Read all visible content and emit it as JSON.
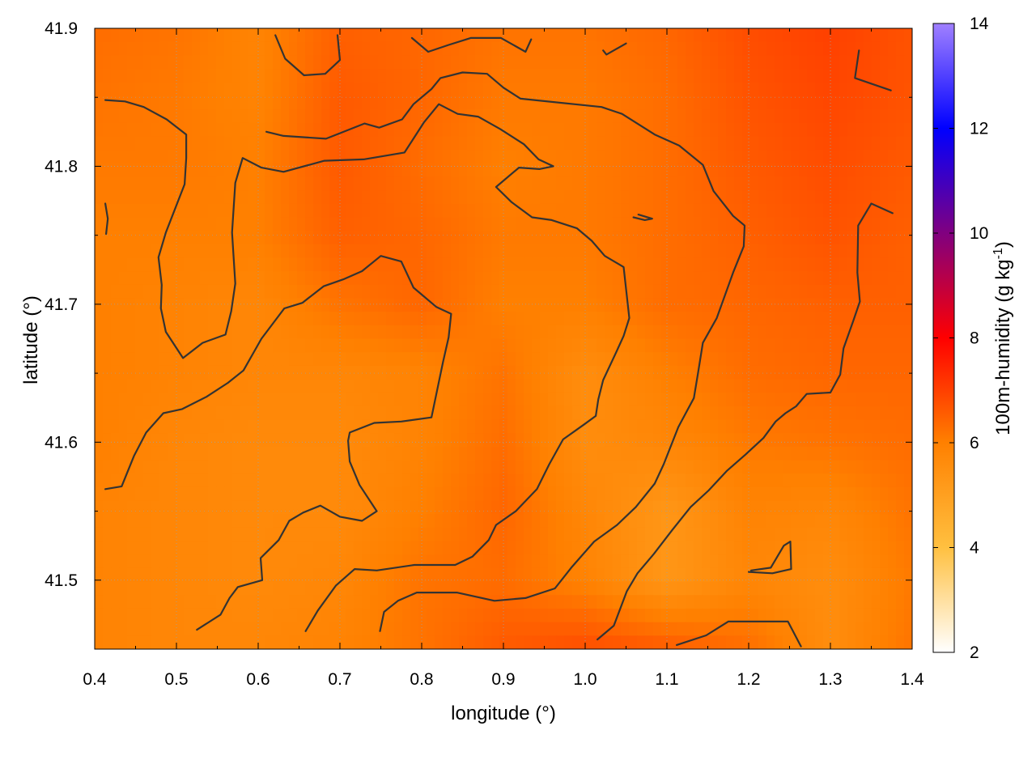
{
  "chart_data": {
    "type": "heatmap",
    "title": "",
    "xlabel": "longitude (°)",
    "ylabel": "latitude (°)",
    "colorbar_label_main": "100m-humidity (g kg",
    "colorbar_label_sup": "-1",
    "colorbar_label_end": ")",
    "xlim": [
      0.4,
      1.4
    ],
    "ylim": [
      41.45,
      41.9
    ],
    "x_ticks": [
      "0.4",
      "0.5",
      "0.6",
      "0.7",
      "0.8",
      "0.9",
      "1.0",
      "1.1",
      "1.2",
      "1.3",
      "1.4"
    ],
    "y_ticks": [
      "41.5",
      "41.6",
      "41.7",
      "41.8",
      "41.9"
    ],
    "colorbar_range": [
      2,
      14
    ],
    "colorbar_ticks": [
      "2",
      "4",
      "6",
      "8",
      "10",
      "12",
      "14"
    ],
    "colormap": [
      {
        "v": 2,
        "color": "#ffffff"
      },
      {
        "v": 4,
        "color": "#ffc040"
      },
      {
        "v": 6,
        "color": "#ff8000"
      },
      {
        "v": 8,
        "color": "#ff0000"
      },
      {
        "v": 10,
        "color": "#800080"
      },
      {
        "v": 12,
        "color": "#0000ff"
      },
      {
        "v": 14,
        "color": "#a080ff"
      }
    ],
    "grid": true,
    "field": {
      "lon": [
        0.4,
        0.5,
        0.6,
        0.7,
        0.8,
        0.9,
        1.0,
        1.1,
        1.2,
        1.3,
        1.4
      ],
      "lat": [
        41.45,
        41.5,
        41.55,
        41.6,
        41.65,
        41.7,
        41.75,
        41.8,
        41.85,
        41.9
      ],
      "values": [
        [
          5.9,
          5.8,
          5.8,
          5.9,
          6.2,
          6.6,
          6.8,
          6.6,
          6.3,
          5.6,
          6.2
        ],
        [
          5.9,
          5.8,
          5.7,
          5.8,
          6.2,
          6.3,
          5.9,
          5.3,
          5.8,
          5.6,
          6.1
        ],
        [
          5.9,
          5.8,
          5.7,
          5.7,
          6.0,
          6.4,
          5.8,
          5.3,
          5.9,
          5.8,
          6.2
        ],
        [
          6.0,
          5.8,
          5.7,
          5.7,
          5.9,
          6.3,
          5.6,
          5.8,
          6.1,
          6.2,
          6.3
        ],
        [
          6.0,
          5.9,
          5.8,
          5.8,
          5.9,
          6.2,
          5.6,
          6.0,
          6.3,
          6.4,
          6.4
        ],
        [
          6.0,
          5.9,
          5.8,
          6.2,
          6.4,
          6.0,
          6.0,
          6.3,
          6.4,
          6.5,
          6.5
        ],
        [
          6.0,
          6.0,
          6.0,
          6.5,
          6.4,
          6.1,
          6.1,
          6.3,
          6.5,
          6.7,
          6.5
        ],
        [
          6.1,
          6.1,
          6.0,
          6.6,
          6.3,
          6.0,
          6.1,
          6.3,
          6.6,
          6.8,
          6.6
        ],
        [
          6.2,
          6.1,
          5.9,
          6.6,
          6.4,
          6.1,
          6.1,
          6.3,
          6.7,
          6.9,
          6.7
        ],
        [
          6.3,
          6.2,
          5.9,
          6.5,
          6.4,
          6.2,
          6.2,
          6.4,
          6.8,
          7.0,
          6.7
        ]
      ]
    },
    "contours": [
      [
        [
          0.413,
          41.566
        ],
        [
          0.433,
          41.568
        ],
        [
          0.448,
          41.59
        ],
        [
          0.463,
          41.607
        ],
        [
          0.484,
          41.621
        ],
        [
          0.507,
          41.624
        ],
        [
          0.537,
          41.633
        ],
        [
          0.563,
          41.643
        ],
        [
          0.582,
          41.652
        ],
        [
          0.604,
          41.675
        ],
        [
          0.632,
          41.697
        ],
        [
          0.654,
          41.701
        ],
        [
          0.68,
          41.713
        ],
        [
          0.704,
          41.718
        ],
        [
          0.727,
          41.724
        ],
        [
          0.75,
          41.735
        ],
        [
          0.775,
          41.731
        ],
        [
          0.79,
          41.712
        ],
        [
          0.818,
          41.698
        ],
        [
          0.836,
          41.693
        ],
        [
          0.833,
          41.676
        ],
        [
          0.826,
          41.658
        ],
        [
          0.812,
          41.618
        ],
        [
          0.775,
          41.615
        ],
        [
          0.742,
          41.614
        ],
        [
          0.712,
          41.607
        ],
        [
          0.71,
          41.601
        ],
        [
          0.712,
          41.586
        ],
        [
          0.724,
          41.569
        ],
        [
          0.745,
          41.55
        ],
        [
          0.727,
          41.543
        ],
        [
          0.7,
          41.546
        ],
        [
          0.676,
          41.554
        ],
        [
          0.655,
          41.549
        ],
        [
          0.638,
          41.543
        ],
        [
          0.625,
          41.529
        ],
        [
          0.603,
          41.516
        ],
        [
          0.605,
          41.5
        ],
        [
          0.575,
          41.495
        ],
        [
          0.565,
          41.487
        ],
        [
          0.554,
          41.475
        ],
        [
          0.525,
          41.464
        ]
      ],
      [
        [
          0.413,
          41.773
        ],
        [
          0.416,
          41.762
        ],
        [
          0.414,
          41.751
        ]
      ],
      [
        [
          0.413,
          41.848
        ],
        [
          0.437,
          41.847
        ],
        [
          0.46,
          41.843
        ],
        [
          0.488,
          41.834
        ],
        [
          0.512,
          41.823
        ],
        [
          0.512,
          41.806
        ],
        [
          0.51,
          41.787
        ],
        [
          0.487,
          41.752
        ],
        [
          0.478,
          41.734
        ],
        [
          0.482,
          41.714
        ],
        [
          0.481,
          41.697
        ],
        [
          0.487,
          41.68
        ],
        [
          0.508,
          41.661
        ],
        [
          0.532,
          41.672
        ],
        [
          0.56,
          41.678
        ],
        [
          0.567,
          41.695
        ],
        [
          0.572,
          41.715
        ],
        [
          0.568,
          41.752
        ],
        [
          0.572,
          41.788
        ],
        [
          0.581,
          41.806
        ],
        [
          0.604,
          41.799
        ],
        [
          0.631,
          41.796
        ],
        [
          0.681,
          41.804
        ],
        [
          0.729,
          41.805
        ],
        [
          0.779,
          41.81
        ],
        [
          0.803,
          41.832
        ],
        [
          0.821,
          41.845
        ],
        [
          0.844,
          41.838
        ],
        [
          0.869,
          41.836
        ],
        [
          0.896,
          41.827
        ],
        [
          0.925,
          41.816
        ],
        [
          0.943,
          41.805
        ],
        [
          0.961,
          41.8
        ],
        [
          0.944,
          41.798
        ],
        [
          0.919,
          41.799
        ],
        [
          0.891,
          41.785
        ],
        [
          0.91,
          41.774
        ],
        [
          0.935,
          41.763
        ],
        [
          0.959,
          41.761
        ],
        [
          0.99,
          41.755
        ],
        [
          1.008,
          41.746
        ],
        [
          1.024,
          41.735
        ],
        [
          1.047,
          41.727
        ],
        [
          1.054,
          41.69
        ],
        [
          1.047,
          41.677
        ],
        [
          1.037,
          41.664
        ],
        [
          1.022,
          41.645
        ],
        [
          1.016,
          41.631
        ],
        [
          1.013,
          41.619
        ],
        [
          0.999,
          41.613
        ],
        [
          0.973,
          41.602
        ],
        [
          0.956,
          41.584
        ],
        [
          0.941,
          41.566
        ],
        [
          0.915,
          41.55
        ],
        [
          0.891,
          41.54
        ],
        [
          0.882,
          41.529
        ],
        [
          0.862,
          41.517
        ],
        [
          0.841,
          41.511
        ],
        [
          0.791,
          41.511
        ],
        [
          0.745,
          41.507
        ],
        [
          0.718,
          41.508
        ],
        [
          0.695,
          41.496
        ],
        [
          0.673,
          41.478
        ],
        [
          0.658,
          41.463
        ]
      ],
      [
        [
          0.621,
          41.895
        ],
        [
          0.633,
          41.878
        ],
        [
          0.656,
          41.866
        ],
        [
          0.682,
          41.867
        ],
        [
          0.7,
          41.877
        ],
        [
          0.697,
          41.895
        ]
      ],
      [
        [
          0.788,
          41.893
        ],
        [
          0.808,
          41.883
        ],
        [
          0.833,
          41.888
        ],
        [
          0.86,
          41.893
        ],
        [
          0.897,
          41.893
        ],
        [
          0.927,
          41.883
        ],
        [
          0.934,
          41.892
        ]
      ],
      [
        [
          1.022,
          41.884
        ],
        [
          1.026,
          41.881
        ],
        [
          1.05,
          41.889
        ]
      ],
      [
        [
          0.61,
          41.825
        ],
        [
          0.631,
          41.822
        ],
        [
          0.683,
          41.82
        ],
        [
          0.73,
          41.831
        ],
        [
          0.748,
          41.828
        ],
        [
          0.776,
          41.834
        ],
        [
          0.79,
          41.845
        ],
        [
          0.812,
          41.856
        ],
        [
          0.823,
          41.864
        ],
        [
          0.85,
          41.868
        ],
        [
          0.88,
          41.867
        ],
        [
          0.9,
          41.857
        ],
        [
          0.921,
          41.849
        ],
        [
          1.02,
          41.843
        ],
        [
          1.045,
          41.838
        ],
        [
          1.085,
          41.823
        ],
        [
          1.115,
          41.815
        ],
        [
          1.144,
          41.801
        ],
        [
          1.157,
          41.782
        ],
        [
          1.181,
          41.764
        ],
        [
          1.195,
          41.757
        ],
        [
          1.194,
          41.742
        ],
        [
          1.181,
          41.723
        ],
        [
          1.161,
          41.69
        ],
        [
          1.144,
          41.672
        ],
        [
          1.138,
          41.65
        ],
        [
          1.133,
          41.632
        ],
        [
          1.114,
          41.611
        ],
        [
          1.096,
          41.584
        ],
        [
          1.085,
          41.57
        ],
        [
          1.062,
          41.553
        ],
        [
          1.039,
          41.54
        ],
        [
          1.011,
          41.528
        ],
        [
          0.983,
          41.509
        ],
        [
          0.963,
          41.494
        ],
        [
          0.927,
          41.487
        ],
        [
          0.889,
          41.485
        ],
        [
          0.843,
          41.491
        ],
        [
          0.794,
          41.491
        ],
        [
          0.771,
          41.485
        ],
        [
          0.754,
          41.477
        ],
        [
          0.749,
          41.463
        ]
      ],
      [
        [
          1.059,
          41.763
        ],
        [
          1.073,
          41.761
        ],
        [
          1.082,
          41.762
        ],
        [
          1.065,
          41.765
        ]
      ],
      [
        [
          1.015,
          41.457
        ],
        [
          1.035,
          41.467
        ],
        [
          1.051,
          41.492
        ],
        [
          1.064,
          41.505
        ],
        [
          1.084,
          41.519
        ],
        [
          1.106,
          41.536
        ],
        [
          1.129,
          41.553
        ],
        [
          1.151,
          41.565
        ],
        [
          1.173,
          41.579
        ],
        [
          1.196,
          41.591
        ],
        [
          1.218,
          41.603
        ],
        [
          1.233,
          41.615
        ],
        [
          1.245,
          41.621
        ],
        [
          1.258,
          41.626
        ],
        [
          1.271,
          41.635
        ],
        [
          1.3,
          41.636
        ],
        [
          1.312,
          41.649
        ],
        [
          1.316,
          41.668
        ],
        [
          1.328,
          41.688
        ],
        [
          1.336,
          41.702
        ],
        [
          1.333,
          41.723
        ],
        [
          1.334,
          41.757
        ],
        [
          1.35,
          41.773
        ],
        [
          1.376,
          41.766
        ]
      ],
      [
        [
          1.203,
          41.507
        ],
        [
          1.227,
          41.509
        ],
        [
          1.243,
          41.525
        ],
        [
          1.251,
          41.528
        ],
        [
          1.252,
          41.508
        ],
        [
          1.229,
          41.505
        ],
        [
          1.2,
          41.506
        ]
      ],
      [
        [
          1.112,
          41.453
        ],
        [
          1.148,
          41.46
        ],
        [
          1.175,
          41.47
        ],
        [
          1.22,
          41.47
        ],
        [
          1.248,
          41.47
        ],
        [
          1.264,
          41.452
        ]
      ],
      [
        [
          1.335,
          41.884
        ],
        [
          1.33,
          41.864
        ],
        [
          1.374,
          41.855
        ]
      ]
    ]
  }
}
